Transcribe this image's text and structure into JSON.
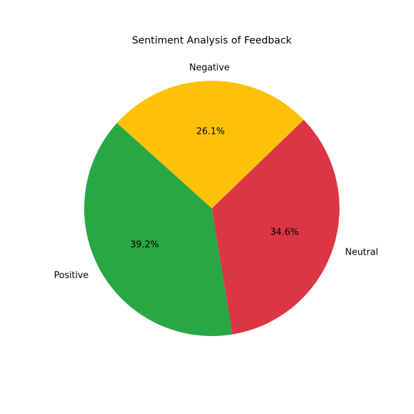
{
  "chart_data": {
    "type": "pie",
    "title": "Sentiment Analysis of Feedback",
    "slices": [
      {
        "label": "Positive",
        "value": 39.2,
        "pct_label": "39.2%",
        "color": "#28a745"
      },
      {
        "label": "Neutral",
        "value": 34.6,
        "pct_label": "34.6%",
        "color": "#dc3545"
      },
      {
        "label": "Negative",
        "value": 26.1,
        "pct_label": "26.1%",
        "color": "#ffc107"
      }
    ],
    "legend": "none"
  }
}
